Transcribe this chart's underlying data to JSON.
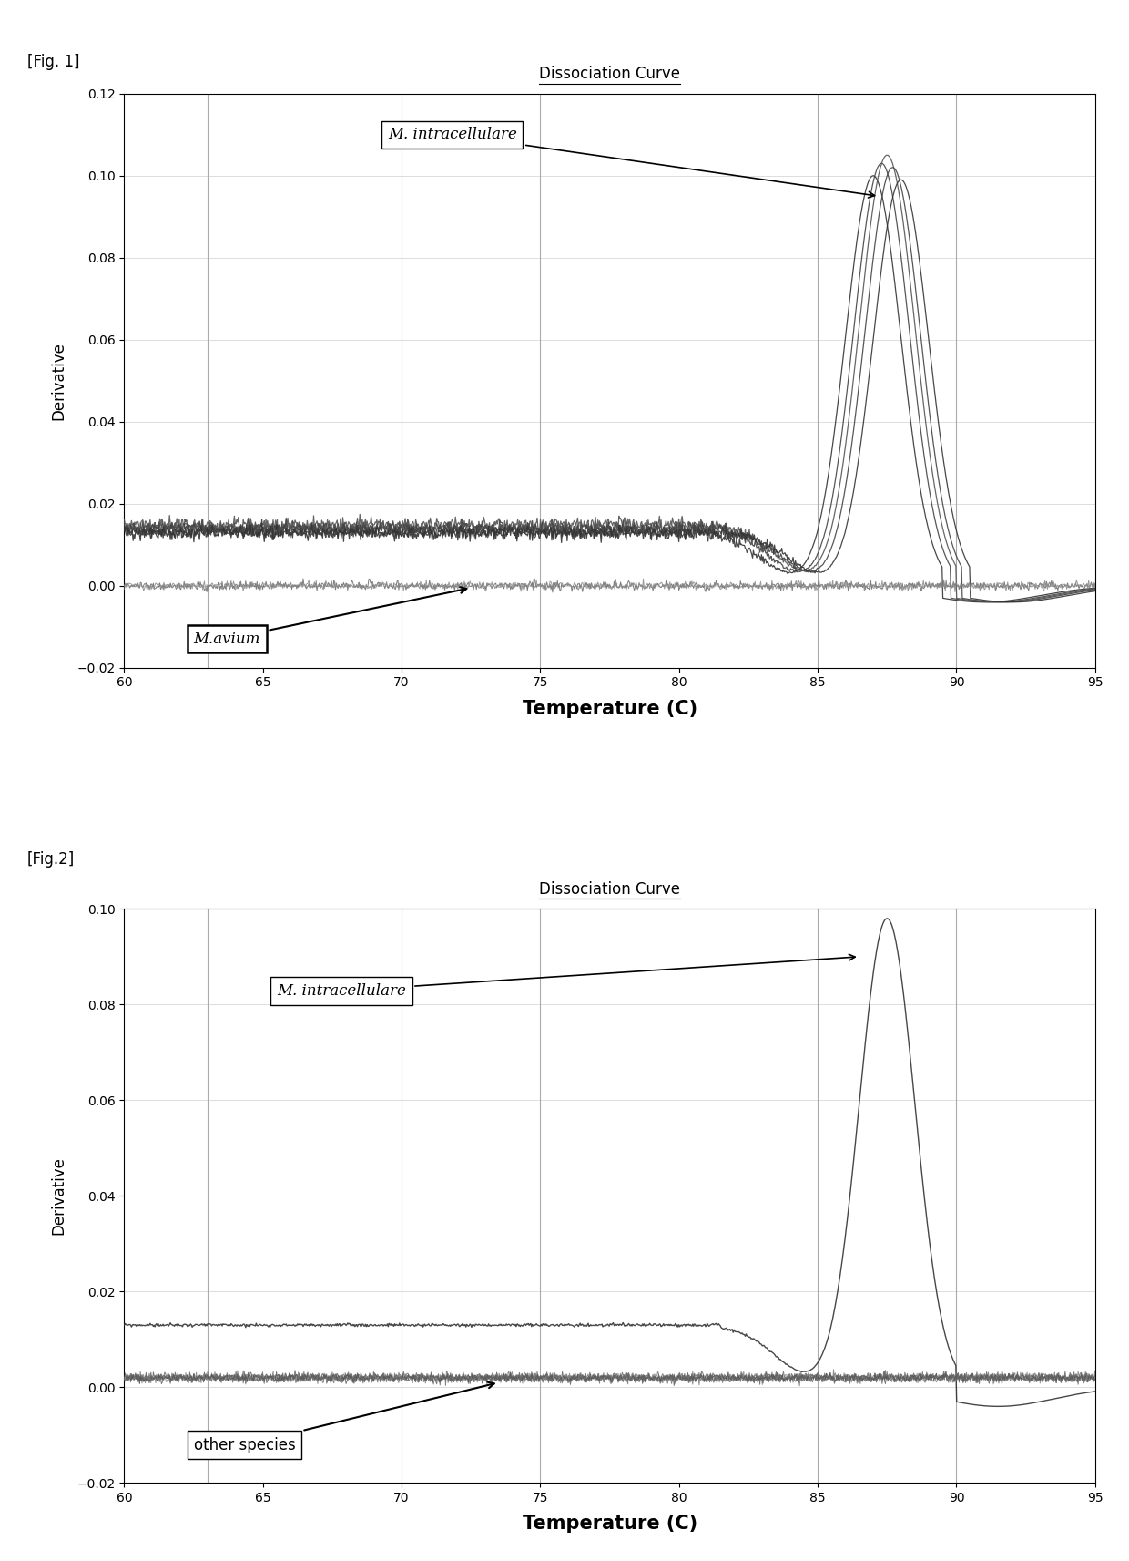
{
  "fig1": {
    "title": "Dissociation Curve",
    "xlabel": "Temperature (C)",
    "ylabel": "Derivative",
    "xlim": [
      60,
      95
    ],
    "ylim": [
      -0.02,
      0.12
    ],
    "yticks": [
      -0.02,
      0.0,
      0.02,
      0.04,
      0.06,
      0.08,
      0.1,
      0.12
    ],
    "xticks": [
      60,
      65,
      70,
      75,
      80,
      85,
      90,
      95
    ],
    "vlines": [
      63,
      70,
      75,
      85,
      90
    ],
    "label_intracellulare": "M. intracellulare",
    "label_avium": "M.avium",
    "fig_label": "[Fig. 1]",
    "n_intracellulare_curves": 5,
    "n_avium_curves": 2,
    "peak_temps": [
      87.0,
      87.3,
      87.5,
      87.7,
      88.0
    ],
    "baselines": [
      0.013,
      0.014,
      0.015,
      0.014,
      0.013
    ],
    "peaks": [
      0.1,
      0.103,
      0.105,
      0.102,
      0.099
    ],
    "intra_colors": [
      "#333333",
      "#444444",
      "#555555",
      "#444444",
      "#333333"
    ],
    "avium_colors": [
      "#666666",
      "#888888"
    ]
  },
  "fig2": {
    "title": "Dissociation Curve",
    "xlabel": "Temperature (C)",
    "ylabel": "Derivative",
    "xlim": [
      60,
      95
    ],
    "ylim": [
      -0.02,
      0.1
    ],
    "yticks": [
      -0.02,
      0.0,
      0.02,
      0.04,
      0.06,
      0.08,
      0.1
    ],
    "xticks": [
      60,
      65,
      70,
      75,
      80,
      85,
      90,
      95
    ],
    "vlines": [
      63,
      70,
      75,
      85,
      90
    ],
    "label_intracellulare": "M. intracellulare",
    "label_other": "other species",
    "fig_label": "[Fig.2]",
    "intracellulare_baseline": 0.013,
    "intracellulare_peak": 0.098,
    "intracellulare_peak_temp": 87.5,
    "other_baseline": 0.002,
    "n_intracellulare_curves": 1,
    "n_other_curves": 5,
    "other_colors": [
      "#555555",
      "#666666",
      "#777777",
      "#666666",
      "#555555"
    ]
  },
  "colors": {
    "grid_minor": "#d8d8d8",
    "vline": "#aaaaaa",
    "background": "#ffffff"
  }
}
